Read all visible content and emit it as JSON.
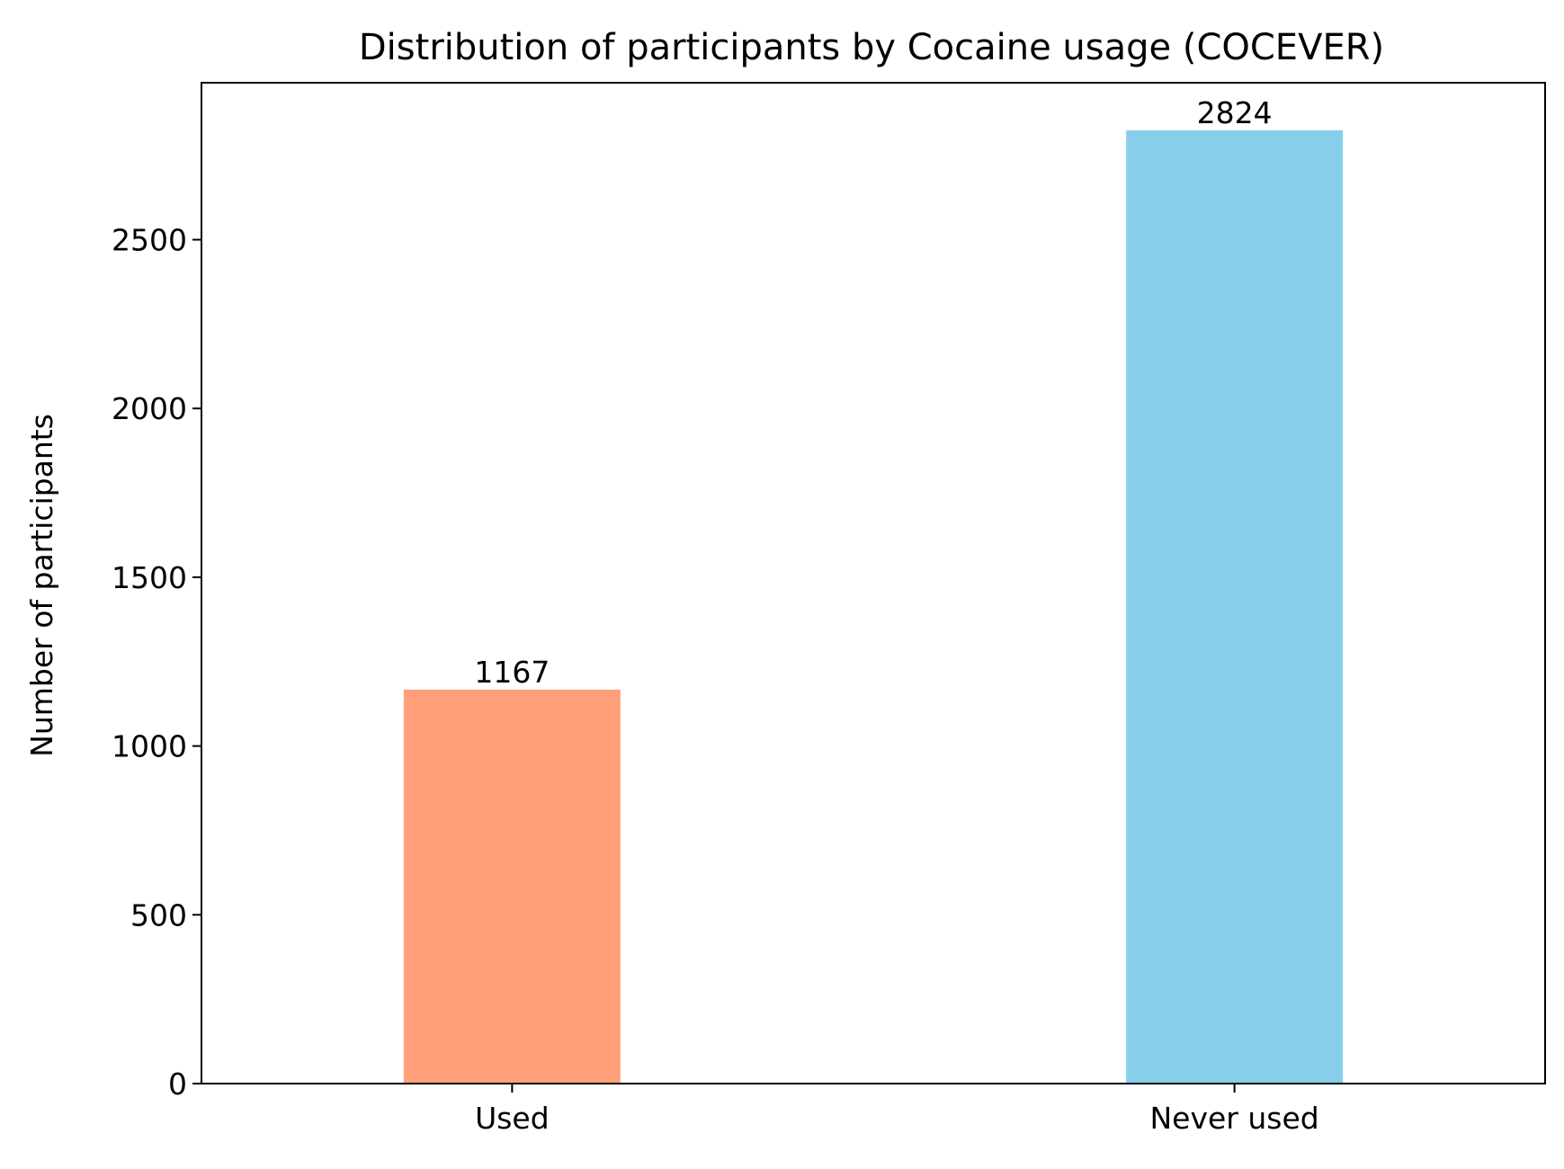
{
  "chart_data": {
    "type": "bar",
    "title": "Distribution of participants by Cocaine usage (COCEVER)",
    "xlabel": "",
    "ylabel": "Number of participants",
    "categories": [
      "Used",
      "Never used"
    ],
    "values": [
      1167,
      2824
    ],
    "data_labels": [
      "1167",
      "2824"
    ],
    "colors": [
      "#FFA07A",
      "#87CEEB"
    ],
    "ylim": [
      0,
      2965
    ],
    "yticks": [
      0,
      500,
      1000,
      1500,
      2000,
      2500
    ],
    "ytick_labels": [
      "0",
      "500",
      "1000",
      "1500",
      "2000",
      "2500"
    ],
    "grid": false,
    "legend": "none"
  }
}
